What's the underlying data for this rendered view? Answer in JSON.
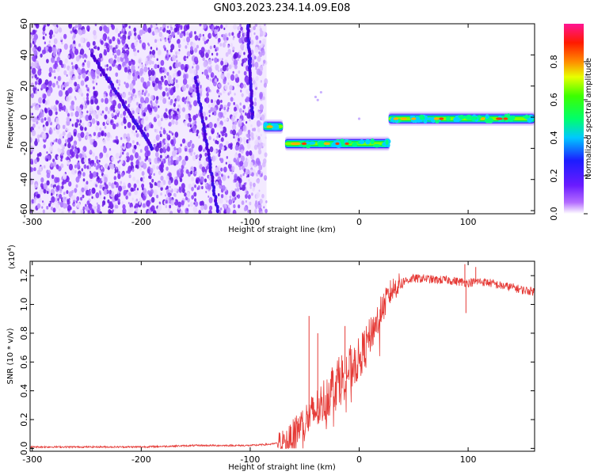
{
  "title": "GN03.2023.234.14.09.E08",
  "chart_data": [
    {
      "type": "heatmap",
      "xlabel": "Height of straight line (km)",
      "ylabel": "Frequency (Hz)",
      "xlim": [
        -302,
        161
      ],
      "ylim": [
        -62,
        60
      ],
      "xticks": [
        -300,
        -200,
        -100,
        0,
        100
      ],
      "yticks": [
        60,
        40,
        20,
        0,
        -20,
        -40,
        -60
      ],
      "yticklabels": [
        "60",
        "40",
        "20",
        "0",
        "-20",
        "-40",
        "-60"
      ],
      "colorbar": {
        "label": "Normalized spectral amplitude",
        "range": [
          0,
          1
        ],
        "ticks": [
          0.0,
          0.2,
          0.4,
          0.6,
          0.8
        ],
        "ticklabels": [
          "0.0",
          "0.2",
          "0.4",
          "0.6",
          "0.8"
        ],
        "colormap": [
          "#ffffff",
          "#8a2be2",
          "#2828ff",
          "#00e5ff",
          "#00ff2a",
          "#ffff00",
          "#ff7f00",
          "#ff0000",
          "#ff1493"
        ]
      },
      "noise_region": {
        "x_range": [
          -302,
          -85
        ],
        "y_range": [
          -62,
          60
        ],
        "color": "#7b2ff7"
      },
      "streaks": [
        {
          "x": [
            -245,
            -190
          ],
          "y": [
            40,
            -20
          ]
        },
        {
          "x": [
            -150,
            -130
          ],
          "y": [
            25,
            -60
          ]
        },
        {
          "x": [
            -102,
            -98
          ],
          "y": [
            60,
            0
          ]
        }
      ],
      "tone_segments": [
        {
          "x_start": -88,
          "x_end": -70,
          "frequency": -6,
          "peak": 0.9
        },
        {
          "x_start": -68,
          "x_end": 28,
          "frequency": -17,
          "peak": 0.85
        },
        {
          "x_start": 27,
          "x_end": 161,
          "frequency": -1,
          "peak": 0.9
        }
      ]
    },
    {
      "type": "line",
      "xlabel": "Height of straight line (km)",
      "ylabel": "SNR (10 * v/v)",
      "y_multiplier": "(x10",
      "y_multiplier_exp": "4",
      "y_multiplier_close": ")",
      "xlim": [
        -302,
        161
      ],
      "ylim": [
        -0.02,
        1.3
      ],
      "xticks": [
        -300,
        -200,
        -100,
        0,
        100
      ],
      "yticks": [
        0.0,
        0.2,
        0.4,
        0.6,
        0.8,
        1.0,
        1.2
      ],
      "yticklabels": [
        "0.0",
        "0.2",
        "0.4",
        "0.6",
        "0.8",
        "1.0",
        "1.2"
      ],
      "series": [
        {
          "color": "#e53935",
          "x": [
            -300,
            -250,
            -200,
            -150,
            -100,
            -80,
            -65,
            -55,
            -45,
            -35,
            -25,
            -15,
            -5,
            0,
            10,
            20,
            30,
            40,
            50,
            60,
            70,
            80,
            90,
            100,
            110,
            120,
            130,
            140,
            150,
            161
          ],
          "y": [
            0.01,
            0.01,
            0.01,
            0.02,
            0.02,
            0.03,
            0.05,
            0.15,
            0.22,
            0.3,
            0.42,
            0.5,
            0.58,
            0.62,
            0.78,
            0.95,
            1.1,
            1.16,
            1.18,
            1.18,
            1.17,
            1.17,
            1.16,
            1.15,
            1.16,
            1.15,
            1.13,
            1.12,
            1.1,
            1.09
          ]
        }
      ],
      "spikes": [
        {
          "x": -46,
          "y": 0.92
        },
        {
          "x": -38,
          "y": 0.8
        },
        {
          "x": -13,
          "y": 0.85
        },
        {
          "x": 97,
          "y": 1.28
        },
        {
          "x": 98,
          "y": 0.94
        },
        {
          "x": 107,
          "y": 1.26
        }
      ]
    }
  ],
  "colors": {
    "line": "#e53935",
    "axis": "#000000"
  }
}
